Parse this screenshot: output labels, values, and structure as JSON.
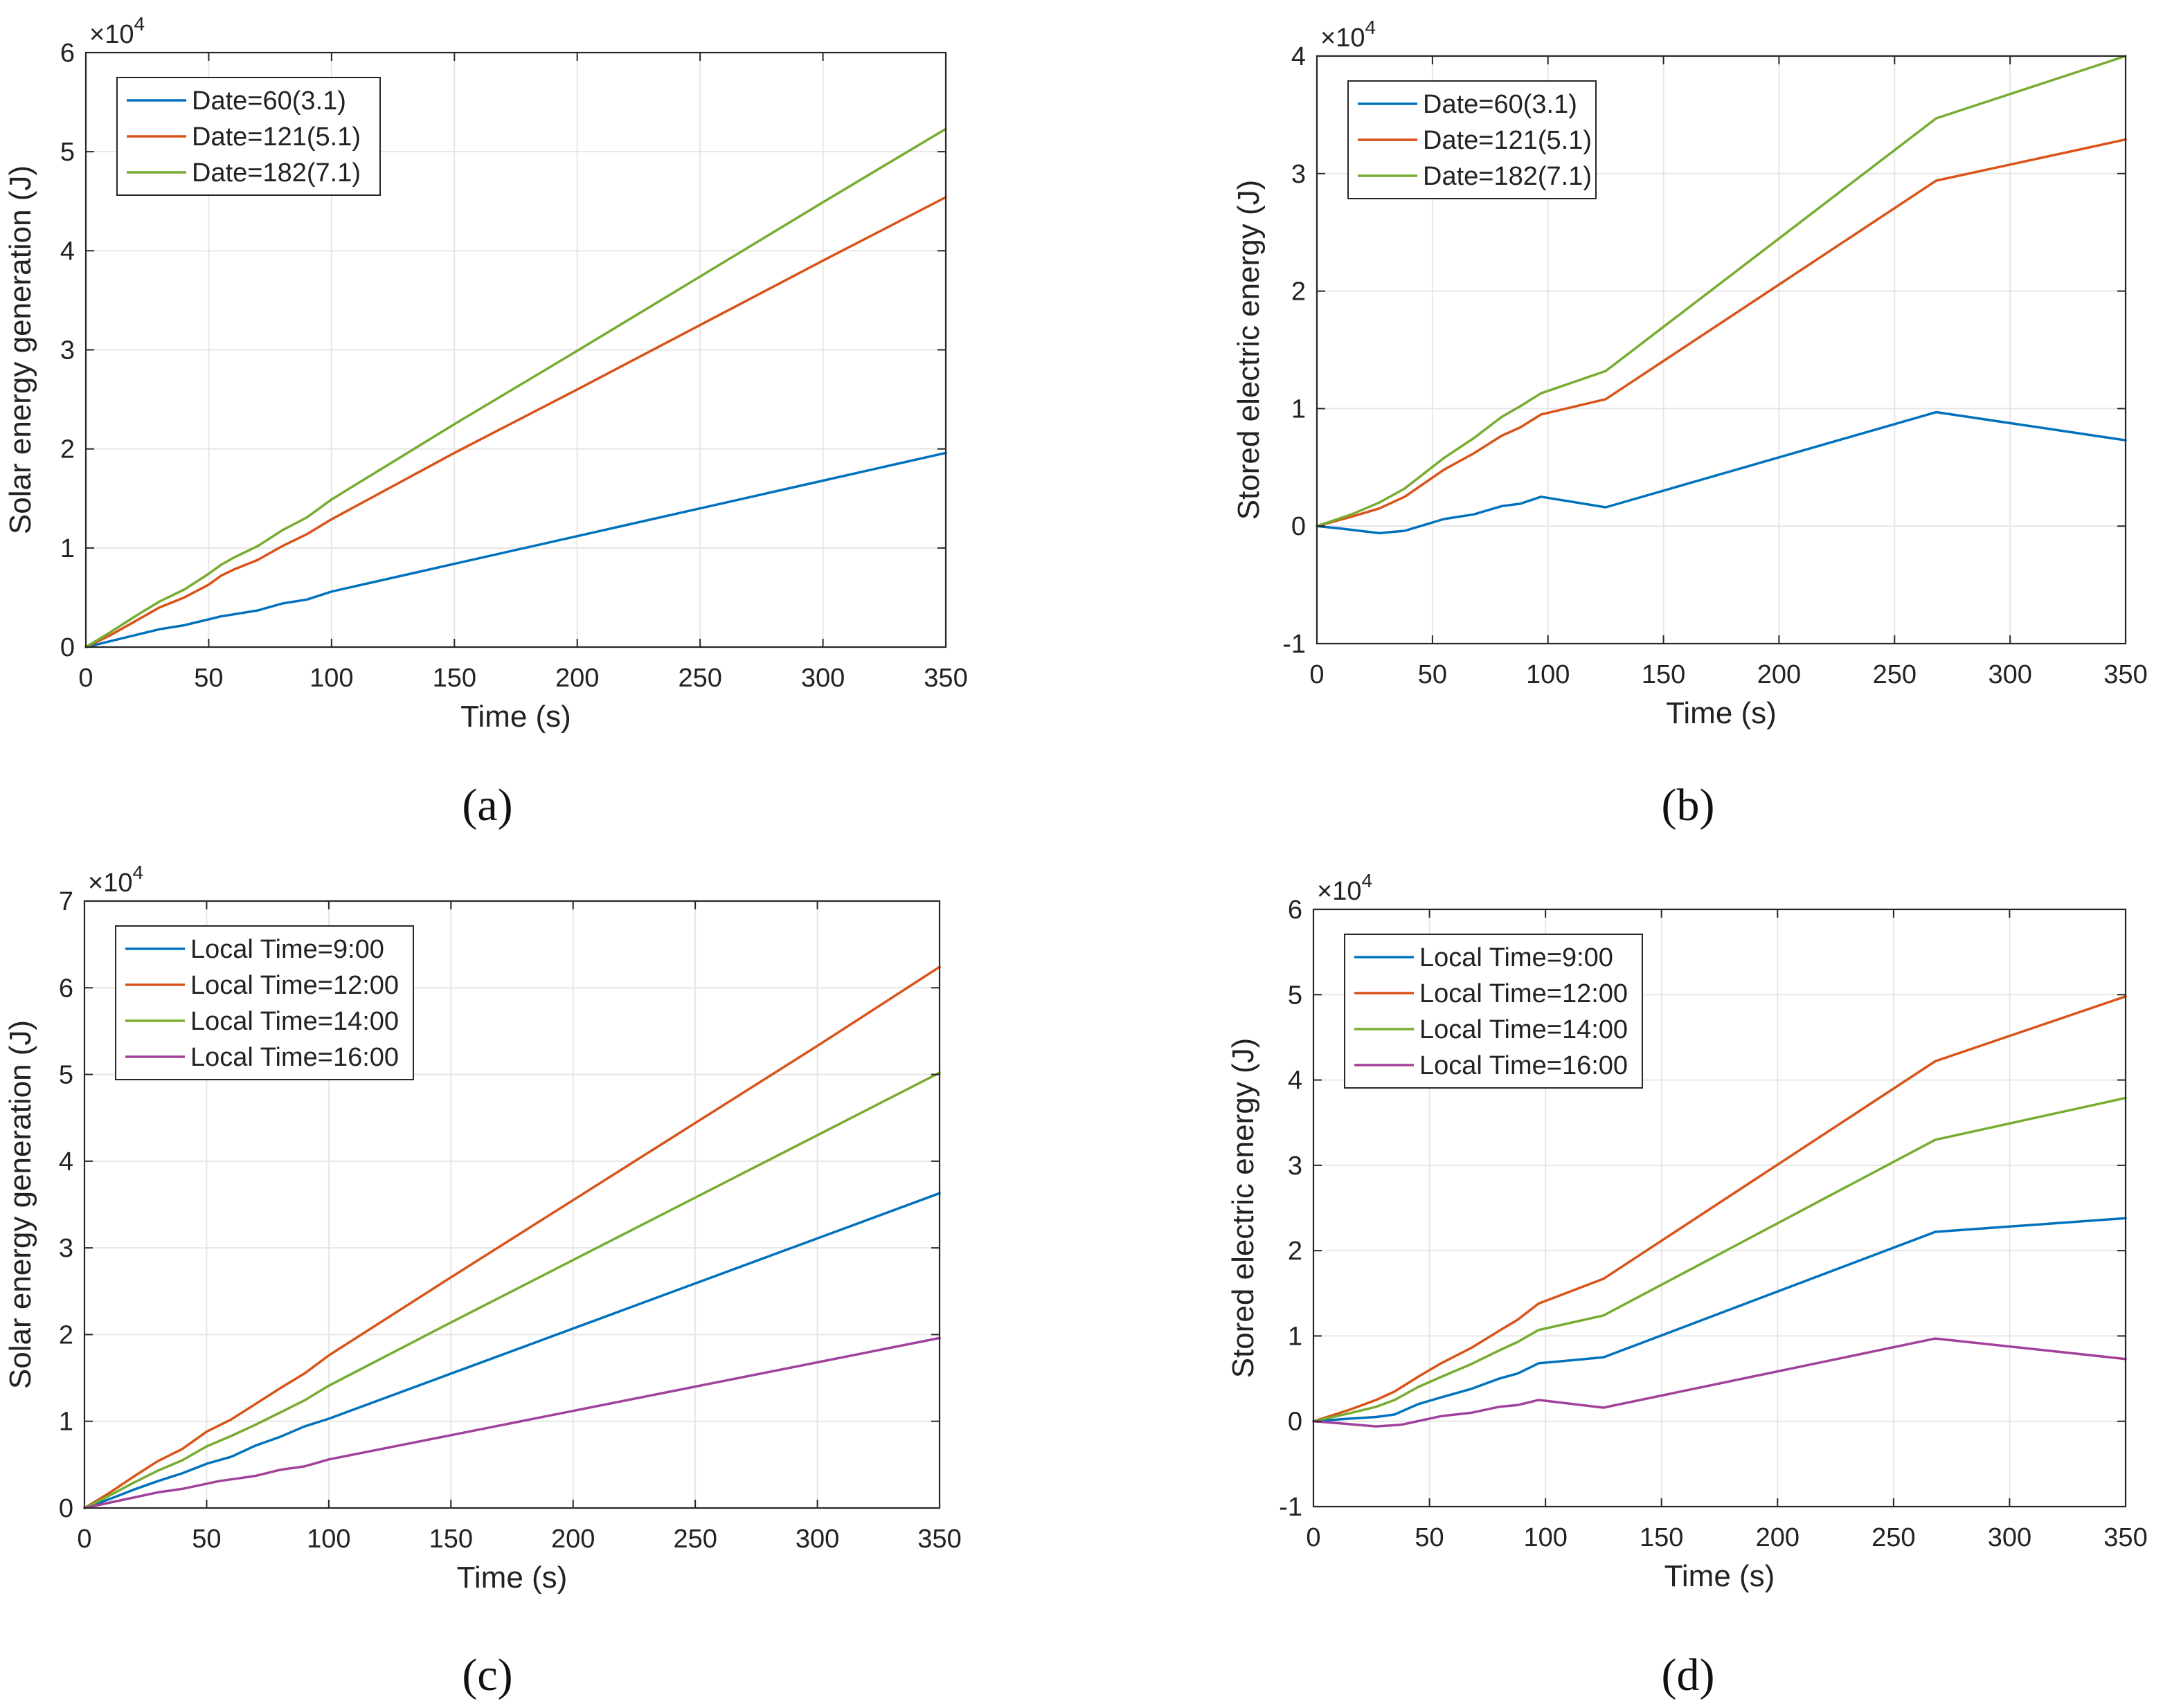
{
  "colors": {
    "blue": "#0072BD",
    "orange": "#D95319",
    "green": "#77AC30",
    "purple": "#A2419A",
    "grid": "#e6e6e6",
    "axis": "#262626"
  },
  "chart_data": [
    {
      "type": "line",
      "caption": "(a)",
      "xlabel": "Time (s)",
      "ylabel": "Solar energy generation (J)",
      "exponent": "×10",
      "exponent_power": "4",
      "xlim": [
        0,
        350
      ],
      "ylim": [
        0,
        6
      ],
      "xticks": [
        0,
        50,
        100,
        150,
        200,
        250,
        300,
        350
      ],
      "yticks": [
        0,
        1,
        2,
        3,
        4,
        5,
        6
      ],
      "grid": true,
      "legend_position": "top-left",
      "series": [
        {
          "name": "Date=60(3.1)",
          "color": "#0072BD",
          "points": [
            [
              0,
              0
            ],
            [
              10,
              0.06
            ],
            [
              20,
              0.12
            ],
            [
              30,
              0.18
            ],
            [
              40,
              0.22
            ],
            [
              50,
              0.28
            ],
            [
              55,
              0.31
            ],
            [
              60,
              0.33
            ],
            [
              70,
              0.37
            ],
            [
              80,
              0.44
            ],
            [
              90,
              0.48
            ],
            [
              100,
              0.56
            ],
            [
              150,
              0.84
            ],
            [
              200,
              1.12
            ],
            [
              250,
              1.4
            ],
            [
              300,
              1.68
            ],
            [
              350,
              1.96
            ]
          ]
        },
        {
          "name": "Date=121(5.1)",
          "color": "#D95319",
          "points": [
            [
              0,
              0
            ],
            [
              10,
              0.12
            ],
            [
              20,
              0.26
            ],
            [
              30,
              0.4
            ],
            [
              40,
              0.5
            ],
            [
              50,
              0.63
            ],
            [
              55,
              0.72
            ],
            [
              60,
              0.78
            ],
            [
              70,
              0.88
            ],
            [
              80,
              1.02
            ],
            [
              90,
              1.14
            ],
            [
              100,
              1.29
            ],
            [
              150,
              1.96
            ],
            [
              200,
              2.6
            ],
            [
              250,
              3.25
            ],
            [
              300,
              3.9
            ],
            [
              350,
              4.54
            ]
          ]
        },
        {
          "name": "Date=182(7.1)",
          "color": "#77AC30",
          "points": [
            [
              0,
              0
            ],
            [
              10,
              0.15
            ],
            [
              20,
              0.31
            ],
            [
              30,
              0.46
            ],
            [
              40,
              0.58
            ],
            [
              50,
              0.74
            ],
            [
              55,
              0.83
            ],
            [
              60,
              0.9
            ],
            [
              70,
              1.02
            ],
            [
              80,
              1.18
            ],
            [
              90,
              1.31
            ],
            [
              100,
              1.49
            ],
            [
              150,
              2.25
            ],
            [
              200,
              2.99
            ],
            [
              250,
              3.74
            ],
            [
              300,
              4.49
            ],
            [
              350,
              5.23
            ]
          ]
        }
      ]
    },
    {
      "type": "line",
      "caption": "(b)",
      "xlabel": "Time (s)",
      "ylabel": "Stored electric energy (J)",
      "exponent": "×10",
      "exponent_power": "4",
      "xlim": [
        0,
        350
      ],
      "ylim": [
        -1,
        4
      ],
      "xticks": [
        0,
        50,
        100,
        150,
        200,
        250,
        300,
        350
      ],
      "yticks": [
        -1,
        0,
        1,
        2,
        3,
        4
      ],
      "grid": true,
      "legend_position": "top-left",
      "series": [
        {
          "name": "Date=60(3.1)",
          "color": "#0072BD",
          "points": [
            [
              0,
              0
            ],
            [
              10,
              -0.02
            ],
            [
              27,
              -0.06
            ],
            [
              38,
              -0.04
            ],
            [
              55,
              0.06
            ],
            [
              68,
              0.1
            ],
            [
              80,
              0.17
            ],
            [
              88,
              0.19
            ],
            [
              97,
              0.25
            ],
            [
              125,
              0.16
            ],
            [
              268,
              0.97
            ],
            [
              350,
              0.73
            ]
          ]
        },
        {
          "name": "Date=121(5.1)",
          "color": "#D95319",
          "points": [
            [
              0,
              0
            ],
            [
              15,
              0.08
            ],
            [
              27,
              0.15
            ],
            [
              38,
              0.25
            ],
            [
              55,
              0.48
            ],
            [
              68,
              0.62
            ],
            [
              80,
              0.77
            ],
            [
              88,
              0.84
            ],
            [
              97,
              0.95
            ],
            [
              125,
              1.08
            ],
            [
              268,
              2.94
            ],
            [
              350,
              3.29
            ]
          ]
        },
        {
          "name": "Date=182(7.1)",
          "color": "#77AC30",
          "points": [
            [
              0,
              0
            ],
            [
              15,
              0.1
            ],
            [
              27,
              0.2
            ],
            [
              38,
              0.32
            ],
            [
              55,
              0.58
            ],
            [
              68,
              0.75
            ],
            [
              80,
              0.93
            ],
            [
              88,
              1.02
            ],
            [
              97,
              1.13
            ],
            [
              125,
              1.32
            ],
            [
              268,
              3.47
            ],
            [
              350,
              4.0
            ]
          ]
        }
      ]
    },
    {
      "type": "line",
      "caption": "(c)",
      "xlabel": "Time (s)",
      "ylabel": "Solar energy generation (J)",
      "exponent": "×10",
      "exponent_power": "4",
      "xlim": [
        0,
        350
      ],
      "ylim": [
        0,
        7
      ],
      "xticks": [
        0,
        50,
        100,
        150,
        200,
        250,
        300,
        350
      ],
      "yticks": [
        0,
        1,
        2,
        3,
        4,
        5,
        6,
        7
      ],
      "grid": true,
      "legend_position": "top-left",
      "series": [
        {
          "name": "Local Time=9:00",
          "color": "#0072BD",
          "points": [
            [
              0,
              0
            ],
            [
              10,
              0.1
            ],
            [
              20,
              0.21
            ],
            [
              30,
              0.31
            ],
            [
              40,
              0.4
            ],
            [
              50,
              0.51
            ],
            [
              60,
              0.59
            ],
            [
              70,
              0.72
            ],
            [
              80,
              0.82
            ],
            [
              90,
              0.94
            ],
            [
              100,
              1.03
            ],
            [
              150,
              1.55
            ],
            [
              200,
              2.07
            ],
            [
              250,
              2.59
            ],
            [
              300,
              3.11
            ],
            [
              350,
              3.63
            ]
          ]
        },
        {
          "name": "Local Time=12:00",
          "color": "#D95319",
          "points": [
            [
              0,
              0
            ],
            [
              10,
              0.17
            ],
            [
              20,
              0.36
            ],
            [
              30,
              0.54
            ],
            [
              40,
              0.68
            ],
            [
              50,
              0.88
            ],
            [
              60,
              1.02
            ],
            [
              70,
              1.2
            ],
            [
              80,
              1.38
            ],
            [
              90,
              1.55
            ],
            [
              100,
              1.76
            ],
            [
              150,
              2.66
            ],
            [
              200,
              3.55
            ],
            [
              250,
              4.44
            ],
            [
              300,
              5.33
            ],
            [
              350,
              6.24
            ]
          ]
        },
        {
          "name": "Local Time=14:00",
          "color": "#77AC30",
          "points": [
            [
              0,
              0
            ],
            [
              10,
              0.14
            ],
            [
              20,
              0.29
            ],
            [
              30,
              0.43
            ],
            [
              40,
              0.55
            ],
            [
              50,
              0.71
            ],
            [
              60,
              0.83
            ],
            [
              70,
              0.96
            ],
            [
              80,
              1.1
            ],
            [
              90,
              1.24
            ],
            [
              100,
              1.41
            ],
            [
              150,
              2.14
            ],
            [
              200,
              2.86
            ],
            [
              250,
              3.58
            ],
            [
              300,
              4.3
            ],
            [
              350,
              5.02
            ]
          ]
        },
        {
          "name": "Local Time=16:00",
          "color": "#A2419A",
          "points": [
            [
              0,
              0
            ],
            [
              10,
              0.06
            ],
            [
              20,
              0.12
            ],
            [
              30,
              0.18
            ],
            [
              40,
              0.22
            ],
            [
              50,
              0.28
            ],
            [
              55,
              0.31
            ],
            [
              60,
              0.33
            ],
            [
              70,
              0.37
            ],
            [
              80,
              0.44
            ],
            [
              90,
              0.48
            ],
            [
              100,
              0.56
            ],
            [
              150,
              0.84
            ],
            [
              200,
              1.12
            ],
            [
              250,
              1.4
            ],
            [
              300,
              1.68
            ],
            [
              350,
              1.96
            ]
          ]
        }
      ]
    },
    {
      "type": "line",
      "caption": "(d)",
      "xlabel": "Time (s)",
      "ylabel": "Stored electric energy (J)",
      "exponent": "×10",
      "exponent_power": "4",
      "xlim": [
        0,
        350
      ],
      "ylim": [
        -1,
        6
      ],
      "xticks": [
        0,
        50,
        100,
        150,
        200,
        250,
        300,
        350
      ],
      "yticks": [
        -1,
        0,
        1,
        2,
        3,
        4,
        5,
        6
      ],
      "grid": true,
      "legend_position": "top-left",
      "series": [
        {
          "name": "Local Time=9:00",
          "color": "#0072BD",
          "points": [
            [
              0,
              0
            ],
            [
              15,
              0.03
            ],
            [
              27,
              0.05
            ],
            [
              35,
              0.08
            ],
            [
              45,
              0.2
            ],
            [
              55,
              0.28
            ],
            [
              68,
              0.38
            ],
            [
              80,
              0.5
            ],
            [
              88,
              0.56
            ],
            [
              97,
              0.68
            ],
            [
              125,
              0.75
            ],
            [
              268,
              2.22
            ],
            [
              350,
              2.38
            ]
          ]
        },
        {
          "name": "Local Time=12:00",
          "color": "#D95319",
          "points": [
            [
              0,
              0
            ],
            [
              15,
              0.13
            ],
            [
              27,
              0.25
            ],
            [
              35,
              0.35
            ],
            [
              45,
              0.52
            ],
            [
              55,
              0.68
            ],
            [
              68,
              0.86
            ],
            [
              80,
              1.06
            ],
            [
              88,
              1.19
            ],
            [
              97,
              1.38
            ],
            [
              125,
              1.67
            ],
            [
              268,
              4.22
            ],
            [
              350,
              4.98
            ]
          ]
        },
        {
          "name": "Local Time=14:00",
          "color": "#77AC30",
          "points": [
            [
              0,
              0
            ],
            [
              15,
              0.09
            ],
            [
              27,
              0.17
            ],
            [
              35,
              0.25
            ],
            [
              45,
              0.4
            ],
            [
              55,
              0.52
            ],
            [
              68,
              0.67
            ],
            [
              80,
              0.83
            ],
            [
              88,
              0.93
            ],
            [
              97,
              1.07
            ],
            [
              125,
              1.24
            ],
            [
              268,
              3.3
            ],
            [
              350,
              3.79
            ]
          ]
        },
        {
          "name": "Local Time=16:00",
          "color": "#A2419A",
          "points": [
            [
              0,
              0
            ],
            [
              10,
              -0.02
            ],
            [
              27,
              -0.06
            ],
            [
              38,
              -0.04
            ],
            [
              55,
              0.06
            ],
            [
              68,
              0.1
            ],
            [
              80,
              0.17
            ],
            [
              88,
              0.19
            ],
            [
              97,
              0.25
            ],
            [
              125,
              0.16
            ],
            [
              268,
              0.97
            ],
            [
              350,
              0.73
            ]
          ]
        }
      ]
    }
  ]
}
